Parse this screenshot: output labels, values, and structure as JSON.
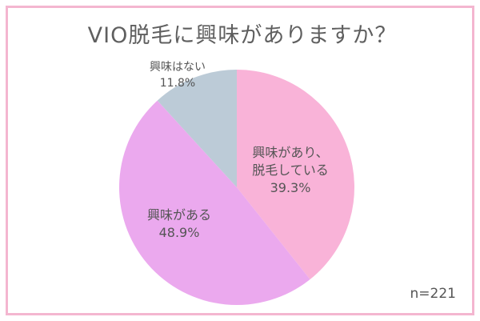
{
  "chart_data": {
    "type": "pie",
    "title": "VIO脱毛に興味がありますか？",
    "note": "n=221",
    "slices": [
      {
        "lines": [
          "興味があり、",
          "脱毛している"
        ],
        "value_label": "39.3%",
        "value": 39.3,
        "color": "#f9b3d8"
      },
      {
        "lines": [
          "興味がある"
        ],
        "value_label": "48.9%",
        "value": 48.9,
        "color": "#eba9ee"
      },
      {
        "lines": [
          "興味はない"
        ],
        "value_label": "11.8%",
        "value": 11.8,
        "color": "#bccbd7"
      }
    ]
  }
}
